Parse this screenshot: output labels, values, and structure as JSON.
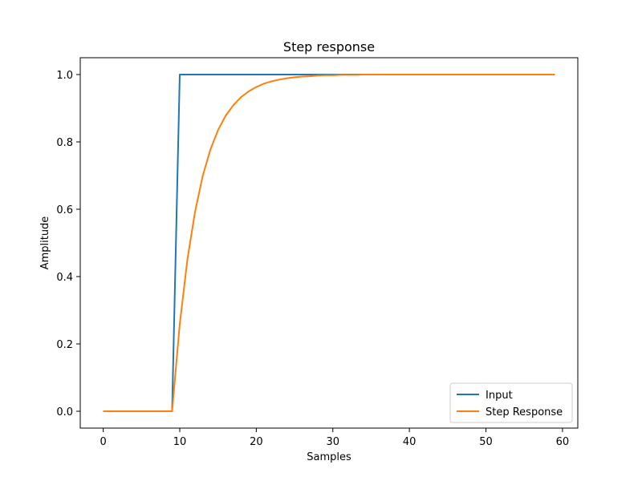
{
  "chart_data": {
    "type": "line",
    "title": "Step response",
    "xlabel": "Samples",
    "ylabel": "Amplitude",
    "xlim": [
      -3,
      62
    ],
    "ylim": [
      -0.05,
      1.05
    ],
    "xticks": [
      0,
      10,
      20,
      30,
      40,
      50,
      60
    ],
    "yticks": [
      0.0,
      0.2,
      0.4,
      0.6,
      0.8,
      1.0
    ],
    "xtick_labels": [
      "0",
      "10",
      "20",
      "30",
      "40",
      "50",
      "60"
    ],
    "ytick_labels": [
      "0.0",
      "0.2",
      "0.4",
      "0.6",
      "0.8",
      "1.0"
    ],
    "grid": false,
    "legend_position": "lower-right",
    "series": [
      {
        "name": "Input",
        "color": "#1f77b4",
        "x": [
          0,
          1,
          2,
          3,
          4,
          5,
          6,
          7,
          8,
          9,
          10,
          11,
          12,
          13,
          14,
          15,
          16,
          17,
          18,
          19,
          20,
          21,
          22,
          23,
          24,
          25,
          26,
          27,
          28,
          29,
          30,
          31,
          32,
          33,
          34,
          35,
          36,
          37,
          38,
          39,
          40,
          41,
          42,
          43,
          44,
          45,
          46,
          47,
          48,
          49,
          50,
          51,
          52,
          53,
          54,
          55,
          56,
          57,
          58,
          59
        ],
        "values": [
          0,
          0,
          0,
          0,
          0,
          0,
          0,
          0,
          0,
          0,
          1,
          1,
          1,
          1,
          1,
          1,
          1,
          1,
          1,
          1,
          1,
          1,
          1,
          1,
          1,
          1,
          1,
          1,
          1,
          1,
          1,
          1,
          1,
          1,
          1,
          1,
          1,
          1,
          1,
          1,
          1,
          1,
          1,
          1,
          1,
          1,
          1,
          1,
          1,
          1,
          1,
          1,
          1,
          1,
          1,
          1,
          1,
          1,
          1,
          1
        ]
      },
      {
        "name": "Step Response",
        "color": "#ff7f0e",
        "x": [
          0,
          1,
          2,
          3,
          4,
          5,
          6,
          7,
          8,
          9,
          10,
          11,
          12,
          13,
          14,
          15,
          16,
          17,
          18,
          19,
          20,
          21,
          22,
          23,
          24,
          25,
          26,
          27,
          28,
          29,
          30,
          31,
          32,
          33,
          34,
          35,
          36,
          37,
          38,
          39,
          40,
          41,
          42,
          43,
          44,
          45,
          46,
          47,
          48,
          49,
          50,
          51,
          52,
          53,
          54,
          55,
          56,
          57,
          58,
          59
        ],
        "values": [
          0,
          0,
          0,
          0,
          0,
          0,
          0,
          0,
          0,
          0,
          0.259,
          0.451,
          0.593,
          0.699,
          0.777,
          0.835,
          0.878,
          0.909,
          0.933,
          0.95,
          0.963,
          0.973,
          0.98,
          0.985,
          0.989,
          0.992,
          0.994,
          0.995,
          0.997,
          0.998,
          0.998,
          0.999,
          0.999,
          0.999,
          1.0,
          1.0,
          1.0,
          1.0,
          1.0,
          1.0,
          1.0,
          1.0,
          1.0,
          1.0,
          1.0,
          1.0,
          1.0,
          1.0,
          1.0,
          1.0,
          1.0,
          1.0,
          1.0,
          1.0,
          1.0,
          1.0,
          1.0,
          1.0,
          1.0,
          1.0
        ]
      }
    ]
  }
}
